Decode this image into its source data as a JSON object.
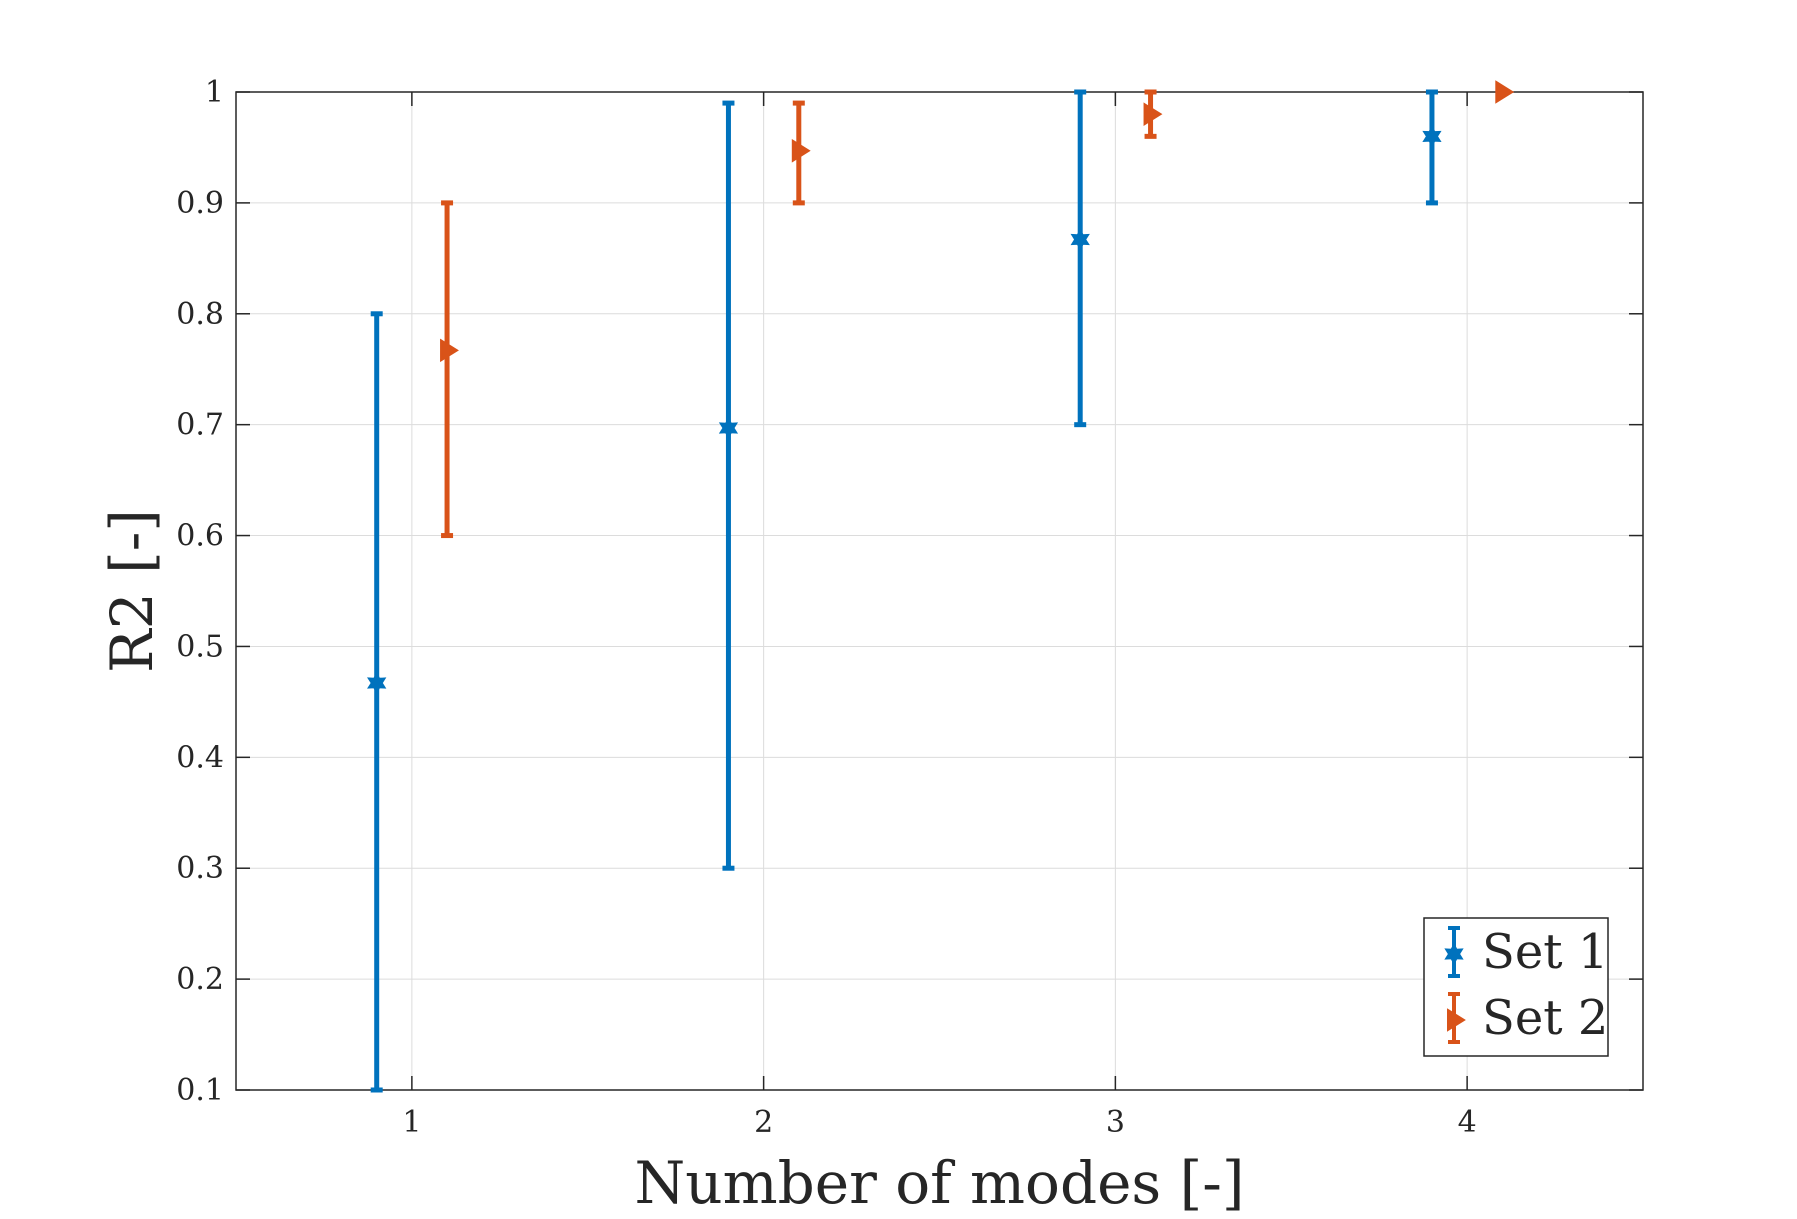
{
  "chart_data": {
    "type": "errorbar",
    "xlabel": "Number of modes [-]",
    "ylabel": "R2 [-]",
    "xlim": [
      0.5,
      4.5
    ],
    "ylim": [
      0.1,
      1.0
    ],
    "xticks": [
      1,
      2,
      3,
      4
    ],
    "yticks": [
      0.1,
      0.2,
      0.3,
      0.4,
      0.5,
      0.6,
      0.7,
      0.8,
      0.9,
      1.0
    ],
    "xtick_labels": [
      "1",
      "2",
      "3",
      "4"
    ],
    "ytick_labels": [
      "0.1",
      "0.2",
      "0.3",
      "0.4",
      "0.5",
      "0.6",
      "0.7",
      "0.8",
      "0.9",
      "1"
    ],
    "grid": true,
    "legend_position": "bottom-right",
    "series": [
      {
        "name": "Set 1",
        "color": "#0072BD",
        "marker": "hexagram",
        "x": [
          1,
          2,
          3,
          4
        ],
        "y": [
          0.467,
          0.697,
          0.867,
          0.96
        ],
        "lower": [
          0.1,
          0.3,
          0.7,
          0.9
        ],
        "upper": [
          0.8,
          0.99,
          1.0,
          1.0
        ]
      },
      {
        "name": "Set 2",
        "color": "#D95319",
        "marker": "triangle-right",
        "x": [
          1,
          2,
          3,
          4
        ],
        "y": [
          0.767,
          0.947,
          0.98,
          1.0
        ],
        "lower": [
          0.6,
          0.9,
          0.96,
          1.0
        ],
        "upper": [
          0.9,
          0.99,
          1.0,
          1.0
        ]
      }
    ]
  }
}
